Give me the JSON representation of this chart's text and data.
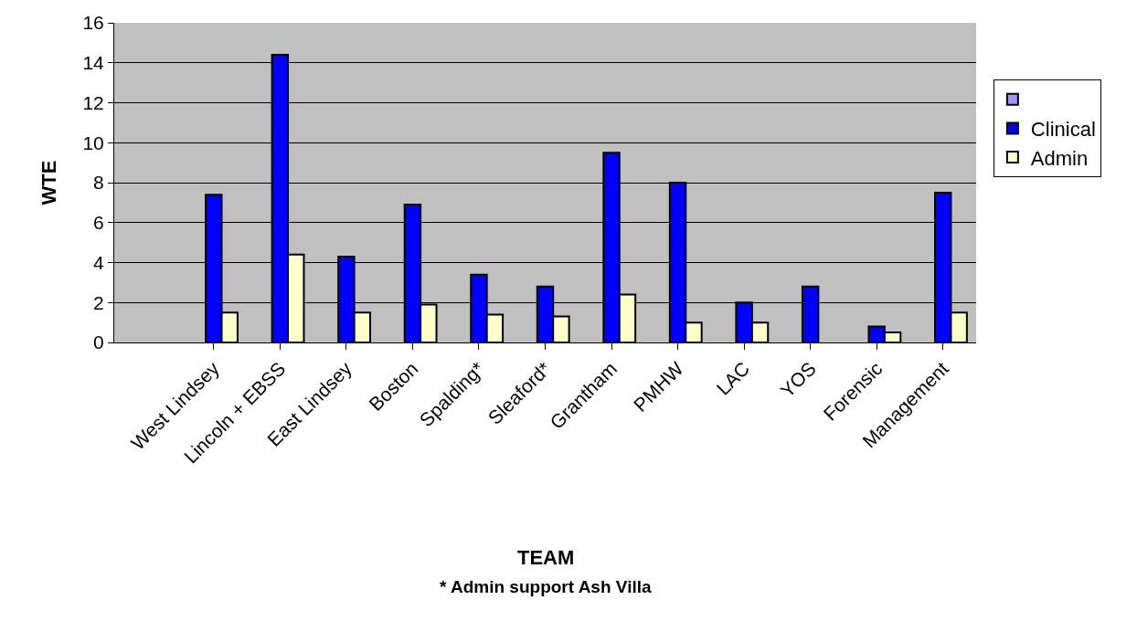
{
  "chart_data": {
    "type": "bar",
    "xlabel": "TEAM",
    "ylabel": "WTE",
    "annotations": [
      "* Admin support Ash Villa"
    ],
    "categories": [
      null,
      "West Lindsey",
      "Lincoln + EBSS",
      "East Lindsey",
      "Boston",
      "Spalding*",
      "Sleaford*",
      "Grantham",
      "PMHW",
      "LAC",
      "YOS",
      "Forensic",
      "Management"
    ],
    "series": [
      {
        "color": "#9999ff",
        "values": [
          null,
          null,
          null,
          null,
          null,
          null,
          null,
          null,
          null,
          null,
          null,
          null,
          null
        ]
      },
      {
        "name": "Clinical",
        "color": "#0000ff",
        "values": [
          null,
          7.4,
          14.4,
          4.3,
          6.9,
          3.4,
          2.8,
          9.5,
          8.0,
          2.0,
          2.8,
          0.8,
          7.5
        ]
      },
      {
        "name": "Admin",
        "color": "#ffffcc",
        "values": [
          null,
          1.5,
          4.4,
          1.5,
          1.9,
          1.4,
          1.3,
          2.4,
          1.0,
          1.0,
          null,
          0.5,
          1.5
        ]
      }
    ],
    "ylim": [
      0,
      16
    ],
    "yticks": [
      0,
      2,
      4,
      6,
      8,
      10,
      12,
      14,
      16
    ],
    "grid": "y",
    "legend": "right"
  }
}
